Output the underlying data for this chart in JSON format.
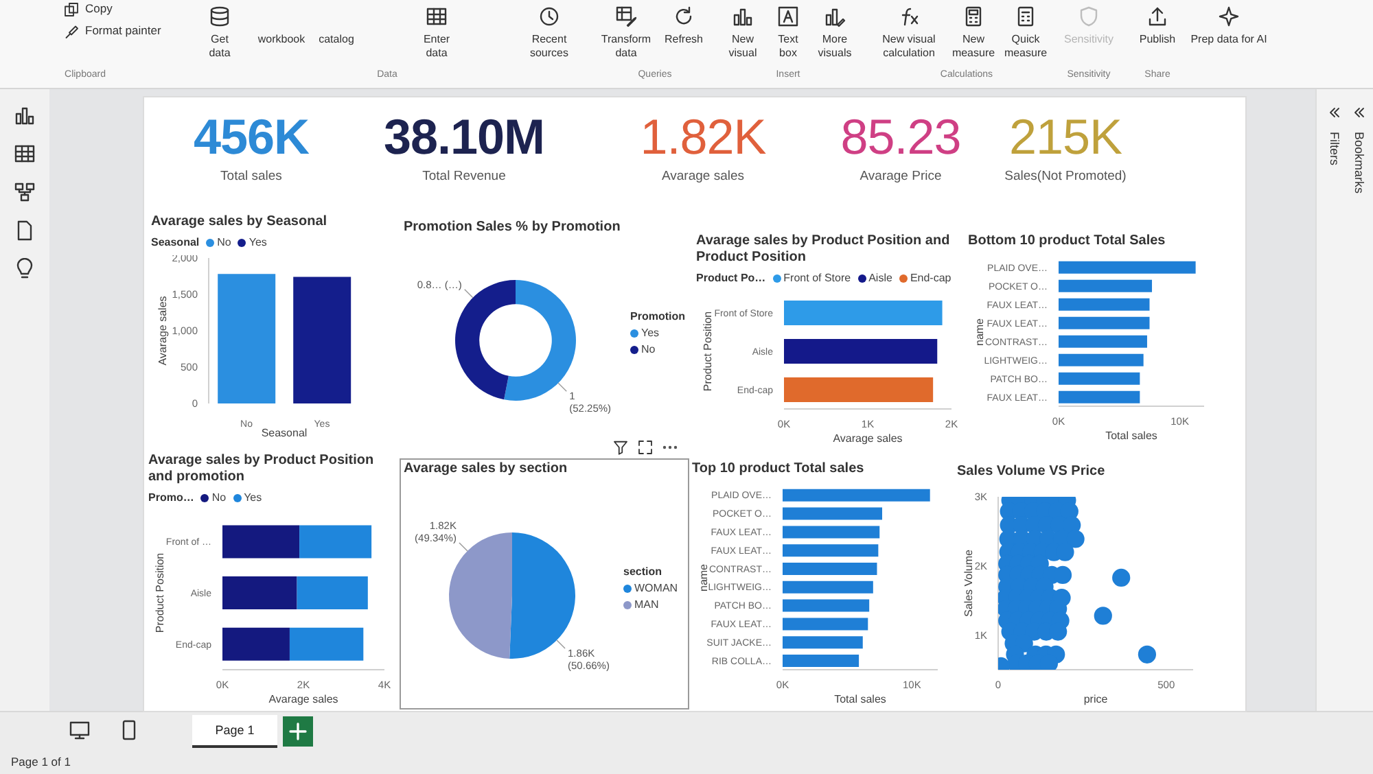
{
  "chart_data": [
    {
      "type": "other",
      "annotations": [
        "Copy",
        "Format painter",
        "Clipboard",
        "Get data",
        "workbook",
        "catalog",
        "Enter data",
        "Recent sources",
        "Data",
        "Transform data",
        "Refresh",
        "Queries",
        "New visual",
        "Text box",
        "More visuals",
        "Insert",
        "New visual calculation",
        "New measure",
        "Quick measure",
        "Calculations",
        "Sensitivity",
        "Sensitivity",
        "Publish",
        "Share",
        "Prep data for AI",
        "Filters",
        "Bookmarks",
        "Page 1",
        "Page 1 of 1"
      ]
    },
    {
      "type": "other",
      "categories": [
        "Total sales",
        "Total Revenue",
        "Avarage sales",
        "Avarage Price",
        "Sales(Not Promoted)"
      ],
      "value_labels": [
        "456K",
        "38.10M",
        "1.82K",
        "85.23",
        "215K"
      ],
      "colors": [
        "#2d8ad6",
        "#1d2350",
        "#e0603c",
        "#cf3f84",
        "#bfa13c"
      ]
    },
    {
      "type": "bar",
      "title": "Avarage sales by Seasonal",
      "legend_title": "Seasonal",
      "legend": "top left",
      "stacked": true,
      "categories": [
        "No",
        "Yes"
      ],
      "series": [
        {
          "name": "No",
          "color": "#2b8fe0",
          "values": [
            1780,
            null
          ]
        },
        {
          "name": "Yes",
          "color": "#141e8c",
          "values": [
            null,
            1740
          ]
        }
      ],
      "ylim": [
        0,
        2000
      ],
      "yticks": [
        0,
        500,
        {
          "value": 1000,
          "label": "1,000"
        },
        {
          "value": 1500,
          "label": "1,500"
        },
        {
          "value": 2000,
          "label": "2,000"
        }
      ],
      "xlabel": "Seasonal",
      "ylabel": "Avarage sales"
    },
    {
      "type": "donut",
      "title": "Promotion Sales % by Promotion",
      "legend_title": "Promotion",
      "legend": "right",
      "categories": [
        "Yes",
        "No"
      ],
      "values": [
        0.95,
        0.84
      ],
      "colors": [
        "#2b8fe0",
        "#141e8c"
      ],
      "value_labels": [
        "1 (52.25%)",
        "0.8… (…)"
      ]
    },
    {
      "type": "bar",
      "orientation": "horizontal",
      "stacked": true,
      "title": "Avarage sales by Product Position and Product Position",
      "legend_title": "Product Po…",
      "legend": "top left",
      "categories": [
        "Front of Store",
        "Aisle",
        "End-cap"
      ],
      "series": [
        {
          "name": "Front of Store",
          "color": "#2e9be8",
          "values": [
            1890,
            null,
            null
          ]
        },
        {
          "name": "Aisle",
          "color": "#14198a",
          "values": [
            null,
            1830,
            null
          ]
        },
        {
          "name": "End-cap",
          "color": "#e06a2c",
          "values": [
            null,
            null,
            1780
          ]
        }
      ],
      "xlim": [
        0,
        2000
      ],
      "xticks": [
        {
          "value": 0,
          "label": "0K"
        },
        {
          "value": 1000,
          "label": "1K"
        },
        {
          "value": 2000,
          "label": "2K"
        }
      ],
      "xlabel": "Avarage sales",
      "ylabel": "Product Position"
    },
    {
      "type": "bar",
      "orientation": "horizontal",
      "title": "Bottom 10 product Total Sales",
      "categories": [
        "PLAID OVE…",
        "POCKET O…",
        "FAUX LEAT…",
        "FAUX LEAT…",
        "CONTRAST…",
        "LIGHTWEIG…",
        "PATCH BO…",
        "FAUX LEAT…"
      ],
      "values": [
        11300,
        7700,
        7500,
        7500,
        7300,
        7000,
        6700,
        6700
      ],
      "color": "#1f7fd6",
      "xlim": [
        0,
        12000
      ],
      "xticks": [
        {
          "value": 0,
          "label": "0K"
        },
        {
          "value": 10000,
          "label": "10K"
        }
      ],
      "xlabel": "Total sales",
      "ylabel": "name"
    },
    {
      "type": "bar",
      "orientation": "horizontal",
      "stacked": true,
      "title": "Avarage sales by Product Position and promotion",
      "legend_title": "Promo…",
      "legend": "top left",
      "categories": [
        "Front of …",
        "Aisle",
        "End-cap"
      ],
      "series": [
        {
          "name": "No",
          "color": "#14197f",
          "values": [
            1900,
            1840,
            1660
          ]
        },
        {
          "name": "Yes",
          "color": "#1f86dc",
          "values": [
            1780,
            1750,
            1820
          ]
        }
      ],
      "xlim": [
        0,
        4000
      ],
      "xticks": [
        {
          "value": 0,
          "label": "0K"
        },
        {
          "value": 2000,
          "label": "2K"
        },
        {
          "value": 4000,
          "label": "4K"
        }
      ],
      "xlabel": "Avarage sales",
      "ylabel": "Product Position"
    },
    {
      "type": "pie",
      "title": "Avarage sales by section",
      "legend_title": "section",
      "legend": "right",
      "categories": [
        "WOMAN",
        "MAN"
      ],
      "values": [
        50.66,
        49.34
      ],
      "colors": [
        "#1f86dc",
        "#8d98c9"
      ],
      "value_labels": [
        "1.86K (50.66%)",
        "1.82K (49.34%)"
      ]
    },
    {
      "type": "bar",
      "orientation": "horizontal",
      "title": "Top 10 product Total sales",
      "categories": [
        "PLAID OVE…",
        "POCKET O…",
        "FAUX LEAT…",
        "FAUX LEAT…",
        "CONTRAST…",
        "LIGHTWEIG…",
        "PATCH BO…",
        "FAUX LEAT…",
        "SUIT JACKE…",
        "RIB COLLA…"
      ],
      "values": [
        11400,
        7700,
        7500,
        7400,
        7300,
        7000,
        6700,
        6600,
        6200,
        5900
      ],
      "color": "#1f7fd6",
      "xlim": [
        0,
        12000
      ],
      "xticks": [
        {
          "value": 0,
          "label": "0K"
        },
        {
          "value": 10000,
          "label": "10K"
        }
      ],
      "xlabel": "Total sales",
      "ylabel": "name"
    },
    {
      "type": "scatter",
      "title": "Sales Volume VS Price",
      "marker": "circle",
      "color": "#1f7fd6",
      "x": [
        36,
        70,
        105,
        140,
        175,
        205,
        32,
        68,
        104,
        140,
        176,
        212,
        32,
        70,
        108,
        145,
        182,
        219,
        30,
        70,
        110,
        150,
        190,
        230,
        30,
        64,
        98,
        132,
        166,
        199,
        27,
        60,
        92,
        124,
        27,
        60,
        93,
        126,
        159,
        192,
        27,
        64,
        101,
        138,
        23,
        56,
        89,
        122,
        155,
        189,
        24,
        55,
        86,
        117,
        148,
        178,
        27,
        59,
        91,
        123,
        155,
        185,
        36,
        72,
        107,
        143,
        178,
        46,
        77,
        50,
        111,
        142,
        172,
        54,
        86,
        118,
        151,
        366,
        312,
        443,
        8
      ],
      "values": [
        2950,
        2950,
        2950,
        2950,
        2950,
        2950,
        2790,
        2790,
        2790,
        2790,
        2790,
        2790,
        2590,
        2590,
        2590,
        2590,
        2590,
        2590,
        2390,
        2390,
        2390,
        2390,
        2390,
        2390,
        2200,
        2200,
        2200,
        2200,
        2200,
        2200,
        2030,
        2030,
        2030,
        2030,
        1870,
        1870,
        1870,
        1870,
        1870,
        1870,
        1700,
        1700,
        1700,
        1700,
        1540,
        1540,
        1540,
        1540,
        1540,
        1540,
        1380,
        1380,
        1380,
        1380,
        1380,
        1380,
        1210,
        1210,
        1210,
        1210,
        1210,
        1210,
        1050,
        1050,
        1050,
        1050,
        1050,
        880,
        880,
        720,
        720,
        720,
        720,
        590,
        590,
        590,
        590,
        1830,
        1280,
        720,
        550
      ],
      "xlim": [
        0,
        580
      ],
      "xticks": [
        0,
        500
      ],
      "ylim": [
        500,
        3000
      ],
      "yticks": [
        {
          "value": 1000,
          "label": "1K"
        },
        {
          "value": 2000,
          "label": "2K"
        },
        {
          "value": 3000,
          "label": "3K"
        }
      ],
      "xlabel": "price",
      "ylabel": "Sales Volume"
    }
  ]
}
